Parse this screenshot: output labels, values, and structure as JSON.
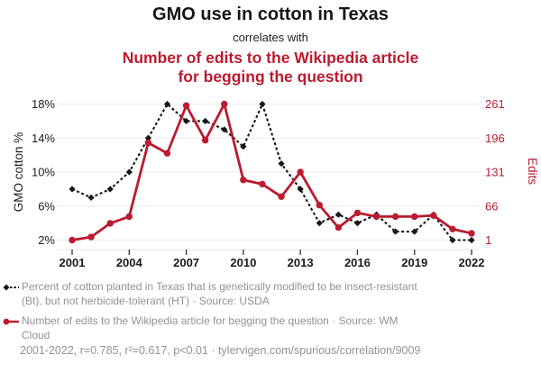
{
  "title": {
    "main": "GMO use in cotton in Texas",
    "connector": "correlates with",
    "secondary": "Number of edits to the Wikipedia article for begging the question"
  },
  "colors": {
    "accent_red": "#ba1b30",
    "series_black": "#161616",
    "text_gray": "#929292",
    "gridline": "#ededed",
    "axis_tick": "#333333",
    "tick_label_black": "#1a1a1a"
  },
  "chart_data": {
    "type": "line",
    "x": [
      2001,
      2002,
      2003,
      2004,
      2005,
      2006,
      2007,
      2008,
      2009,
      2010,
      2011,
      2012,
      2013,
      2014,
      2015,
      2016,
      2017,
      2018,
      2019,
      2020,
      2021,
      2022
    ],
    "x_tick_labels": [
      "2001",
      "2004",
      "2007",
      "2010",
      "2013",
      "2016",
      "2019",
      "2022"
    ],
    "x_tick_values": [
      2001,
      2004,
      2007,
      2010,
      2013,
      2016,
      2019,
      2022
    ],
    "series": [
      {
        "name": "GMO cotton %",
        "axis": "left",
        "style": "dashed-diamond",
        "values": [
          8,
          7,
          8,
          10,
          14,
          18,
          16,
          16,
          15,
          13,
          18,
          11,
          8,
          4,
          5,
          4,
          5,
          3,
          3,
          5,
          2,
          2
        ]
      },
      {
        "name": "Edits",
        "axis": "right",
        "style": "solid-circle",
        "values": [
          1,
          7,
          33,
          46,
          187,
          167,
          258,
          192,
          261,
          116,
          108,
          84,
          131,
          68,
          25,
          53,
          46,
          46,
          46,
          48,
          22,
          14
        ]
      }
    ],
    "left_axis": {
      "label": "GMO cotton %",
      "tick_labels": [
        "2%",
        "6%",
        "10%",
        "14%",
        "18%"
      ],
      "tick_values": [
        2,
        6,
        10,
        14,
        18
      ],
      "range": [
        2,
        18
      ],
      "grid": true
    },
    "right_axis": {
      "label": "Edits",
      "tick_labels": [
        "1",
        "66",
        "131",
        "196",
        "261"
      ],
      "tick_values": [
        1,
        66,
        131,
        196,
        261
      ],
      "range": [
        1,
        261
      ],
      "grid": false
    },
    "legend_position": "bottom-left",
    "x_range": [
      2001,
      2022
    ]
  },
  "legend": [
    {
      "marker": "black-dashed-diamond",
      "label": "Percent of cotton planted in Texas that is genetically modified to be insect-resistant (Bt), but not herbicide-tolerant (HT) · Source: USDA"
    },
    {
      "marker": "red-solid-circle",
      "label": "Number of edits to the Wikipedia article for begging the question · Source: WM Cloud"
    }
  ],
  "footer": {
    "stats": "2001-2022, r=0.785, r²=0.617, p<0.01 · tylervigen.com/spurious/correlation/9009"
  }
}
